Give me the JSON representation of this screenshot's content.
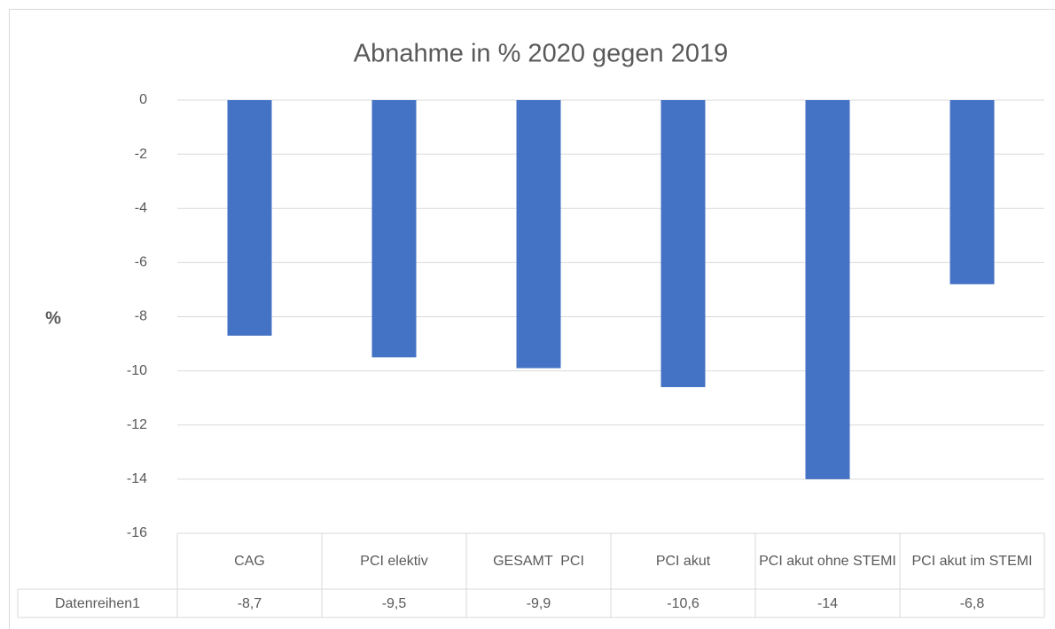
{
  "chart_data": {
    "type": "bar",
    "title": "Abnahme in % 2020 gegen 2019",
    "y_label": "%",
    "categories": [
      "CAG",
      "PCI elektiv",
      "GESAMT  PCI",
      "PCI akut",
      "PCI akut ohne STEMI",
      "PCI akut im STEMI"
    ],
    "series": [
      {
        "name": "Datenreihen1",
        "color": "#4472c4",
        "values": [
          -8.7,
          -9.5,
          -9.9,
          -10.6,
          -14,
          -6.8
        ],
        "value_labels": [
          "-8,7",
          "-9,5",
          "-9,9",
          "-10,6",
          "-14",
          "-6,8"
        ]
      }
    ],
    "ylim": [
      -16,
      0
    ],
    "yticks": [
      0,
      -2,
      -4,
      -6,
      -8,
      -10,
      -12,
      -14,
      -16
    ],
    "grid": true,
    "data_table": true
  }
}
